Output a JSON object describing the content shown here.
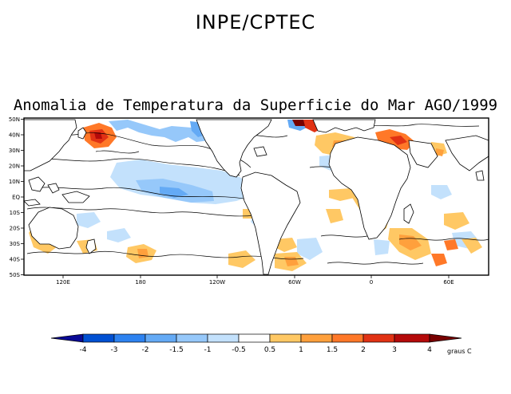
{
  "header": {
    "institution": "INPE/CPTEC",
    "map_title": "Anomalia de Temperatura da Superficie do Mar AGO/1999"
  },
  "map": {
    "lat_labels": [
      "50N",
      "40N",
      "30N",
      "20N",
      "10N",
      "EQ",
      "10S",
      "20S",
      "30S",
      "40S",
      "50S"
    ],
    "lon_labels": [
      "120E",
      "180",
      "120W",
      "60W",
      "0",
      "60E"
    ]
  },
  "colorbar": {
    "labels": [
      "-4",
      "-3",
      "-2",
      "-1.5",
      "-1",
      "-0.5",
      "0.5",
      "1",
      "1.5",
      "2",
      "3",
      "4"
    ],
    "colors": [
      "#0a0a96",
      "#0050d2",
      "#2d82f0",
      "#64aaf5",
      "#96c8fa",
      "#c3e1fc",
      "#ffffff",
      "#ffc864",
      "#ffa03c",
      "#ff7828",
      "#e13214",
      "#b40a0a",
      "#780000"
    ],
    "unit": "graus C"
  }
}
